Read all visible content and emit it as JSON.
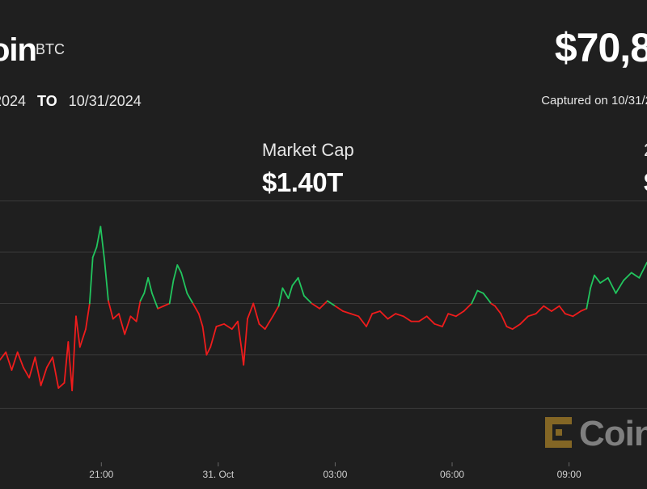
{
  "header": {
    "coin_name": "oin",
    "ticker": "BTC",
    "price": "$70,8",
    "range_from": "2024",
    "range_to_word": "TO",
    "range_to": "10/31/2024",
    "captured": "Captured on 10/31/2"
  },
  "stats": {
    "market_cap_label": "Market Cap",
    "market_cap_value": "$1.40T",
    "partial_label": "2",
    "partial_value": "$"
  },
  "watermark": {
    "text": "Coin",
    "icon": "coindesk-logo-icon"
  },
  "colors": {
    "up": "#22c55e",
    "down": "#ef1c1c",
    "grid": "#3a3a3a",
    "bg": "#1f1f1f"
  },
  "chart_data": {
    "type": "line",
    "xlabel": "",
    "ylabel": "",
    "grid": true,
    "x_ticks": [
      "21:00",
      "31. Oct",
      "03:00",
      "06:00",
      "09:00"
    ],
    "x_tick_hours": [
      21,
      24,
      27,
      30,
      33
    ],
    "x_range_hours": [
      18.4,
      35.0
    ],
    "y_range": [
      0,
      1
    ],
    "y_grid": [
      0.21,
      0.42,
      0.62,
      0.82,
      1.02
    ],
    "baseline": 0.62,
    "series": [
      {
        "name": "",
        "points": [
          [
            18.4,
            0.4
          ],
          [
            18.55,
            0.43
          ],
          [
            18.7,
            0.36
          ],
          [
            18.85,
            0.43
          ],
          [
            19.0,
            0.37
          ],
          [
            19.15,
            0.33
          ],
          [
            19.3,
            0.41
          ],
          [
            19.45,
            0.3
          ],
          [
            19.6,
            0.37
          ],
          [
            19.75,
            0.41
          ],
          [
            19.9,
            0.29
          ],
          [
            20.05,
            0.31
          ],
          [
            20.15,
            0.47
          ],
          [
            20.25,
            0.28
          ],
          [
            20.35,
            0.57
          ],
          [
            20.45,
            0.45
          ],
          [
            20.6,
            0.52
          ],
          [
            20.7,
            0.62
          ],
          [
            20.78,
            0.8
          ],
          [
            20.88,
            0.84
          ],
          [
            20.98,
            0.92
          ],
          [
            21.08,
            0.79
          ],
          [
            21.18,
            0.63
          ],
          [
            21.3,
            0.56
          ],
          [
            21.45,
            0.58
          ],
          [
            21.6,
            0.5
          ],
          [
            21.75,
            0.57
          ],
          [
            21.9,
            0.55
          ],
          [
            22.0,
            0.63
          ],
          [
            22.1,
            0.66
          ],
          [
            22.2,
            0.72
          ],
          [
            22.3,
            0.66
          ],
          [
            22.45,
            0.6
          ],
          [
            22.6,
            0.61
          ],
          [
            22.75,
            0.62
          ],
          [
            22.85,
            0.71
          ],
          [
            22.95,
            0.77
          ],
          [
            23.05,
            0.74
          ],
          [
            23.2,
            0.66
          ],
          [
            23.35,
            0.62
          ],
          [
            23.5,
            0.58
          ],
          [
            23.6,
            0.53
          ],
          [
            23.7,
            0.42
          ],
          [
            23.8,
            0.45
          ],
          [
            23.95,
            0.53
          ],
          [
            24.15,
            0.54
          ],
          [
            24.35,
            0.52
          ],
          [
            24.5,
            0.55
          ],
          [
            24.6,
            0.44
          ],
          [
            24.65,
            0.38
          ],
          [
            24.75,
            0.56
          ],
          [
            24.9,
            0.62
          ],
          [
            25.05,
            0.54
          ],
          [
            25.2,
            0.52
          ],
          [
            25.4,
            0.57
          ],
          [
            25.55,
            0.61
          ],
          [
            25.65,
            0.68
          ],
          [
            25.8,
            0.64
          ],
          [
            25.9,
            0.69
          ],
          [
            26.05,
            0.72
          ],
          [
            26.2,
            0.65
          ],
          [
            26.4,
            0.62
          ],
          [
            26.6,
            0.6
          ],
          [
            26.8,
            0.63
          ],
          [
            27.0,
            0.61
          ],
          [
            27.2,
            0.59
          ],
          [
            27.4,
            0.58
          ],
          [
            27.6,
            0.57
          ],
          [
            27.8,
            0.53
          ],
          [
            27.95,
            0.58
          ],
          [
            28.15,
            0.59
          ],
          [
            28.35,
            0.56
          ],
          [
            28.55,
            0.58
          ],
          [
            28.75,
            0.57
          ],
          [
            28.95,
            0.55
          ],
          [
            29.15,
            0.55
          ],
          [
            29.35,
            0.57
          ],
          [
            29.55,
            0.54
          ],
          [
            29.75,
            0.53
          ],
          [
            29.9,
            0.58
          ],
          [
            30.1,
            0.57
          ],
          [
            30.3,
            0.59
          ],
          [
            30.5,
            0.62
          ],
          [
            30.65,
            0.67
          ],
          [
            30.8,
            0.66
          ],
          [
            31.0,
            0.62
          ],
          [
            31.1,
            0.61
          ],
          [
            31.25,
            0.58
          ],
          [
            31.4,
            0.53
          ],
          [
            31.55,
            0.52
          ],
          [
            31.75,
            0.54
          ],
          [
            31.95,
            0.57
          ],
          [
            32.15,
            0.58
          ],
          [
            32.35,
            0.61
          ],
          [
            32.55,
            0.59
          ],
          [
            32.75,
            0.61
          ],
          [
            32.9,
            0.58
          ],
          [
            33.1,
            0.57
          ],
          [
            33.3,
            0.59
          ],
          [
            33.45,
            0.6
          ],
          [
            33.55,
            0.68
          ],
          [
            33.65,
            0.73
          ],
          [
            33.8,
            0.7
          ],
          [
            34.0,
            0.72
          ],
          [
            34.2,
            0.66
          ],
          [
            34.4,
            0.71
          ],
          [
            34.6,
            0.74
          ],
          [
            34.8,
            0.72
          ],
          [
            35.0,
            0.78
          ]
        ]
      }
    ]
  }
}
